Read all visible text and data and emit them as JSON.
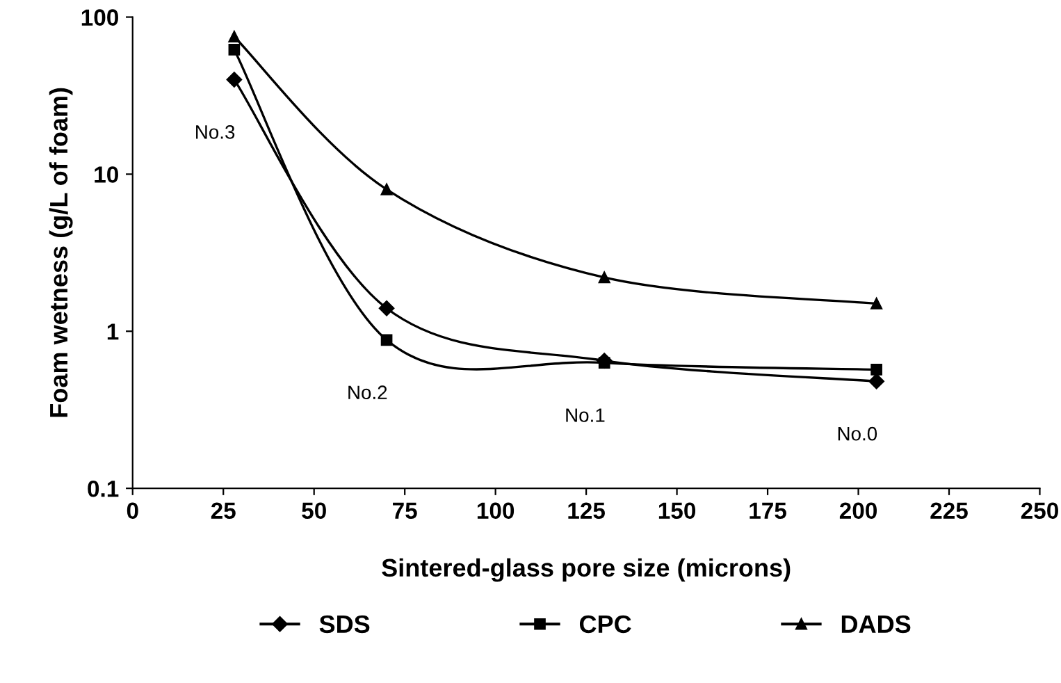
{
  "chart_data": {
    "type": "line",
    "xlabel": "Sintered-glass pore size (microns)",
    "ylabel": "Foam wetness (g/L of foam)",
    "x": [
      28,
      70,
      130,
      205
    ],
    "series": [
      {
        "name": "SDS",
        "color": "#000000",
        "marker": "diamond",
        "values": [
          40,
          1.4,
          0.65,
          0.48
        ]
      },
      {
        "name": "CPC",
        "color": "#000000",
        "marker": "square",
        "values": [
          62,
          0.88,
          0.63,
          0.57
        ]
      },
      {
        "name": "DADS",
        "color": "#000000",
        "marker": "triangle",
        "values": [
          75,
          8,
          2.2,
          1.5
        ]
      }
    ],
    "annotations": [
      "No.3",
      "No.2",
      "No.1",
      "No.0"
    ],
    "log": "y",
    "xlim": [
      0,
      250
    ],
    "xticks": [
      0,
      25,
      50,
      75,
      100,
      125,
      150,
      175,
      200,
      225,
      250
    ],
    "ylim": [
      0.1,
      100
    ],
    "yticks": [
      0.1,
      1,
      10,
      100
    ],
    "grid": false,
    "legend": "bottom",
    "line_style": "solid"
  }
}
